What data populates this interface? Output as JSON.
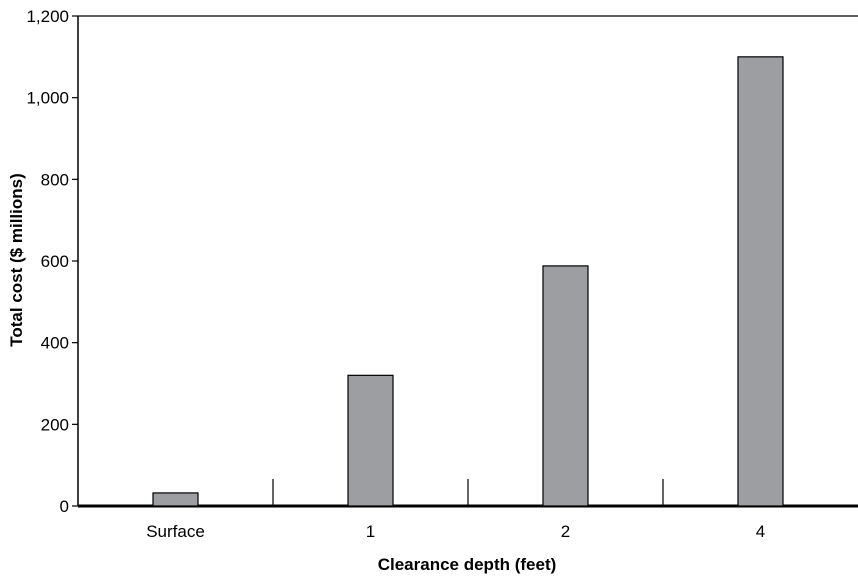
{
  "chart_data": {
    "type": "bar",
    "title": "",
    "xlabel": "Clearance depth (feet)",
    "ylabel": "Total cost ($ millions)",
    "categories": [
      "Surface",
      "1",
      "2",
      "4"
    ],
    "values": [
      32,
      320,
      588,
      1100
    ],
    "ylim": [
      0,
      1200
    ],
    "yticks": [
      0,
      200,
      400,
      600,
      800,
      1000,
      1200
    ],
    "ytick_labels": [
      "0",
      "200",
      "400",
      "600",
      "800",
      "1,000",
      "1,200"
    ],
    "grid": false,
    "legend": "none",
    "bar_color": "#9d9ea2"
  }
}
